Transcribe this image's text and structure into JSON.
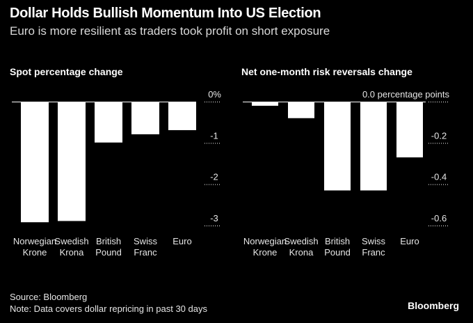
{
  "title": "Dollar Holds Bullish Momentum Into US Election",
  "subtitle": "Euro is more resilient as traders took profit on short exposure",
  "source": "Source: Bloomberg",
  "note": "Note: Data covers dollar repricing in past 30 days",
  "brand": "Bloomberg",
  "colors": {
    "background": "#000000",
    "bar": "#ffffff",
    "text": "#ffffff"
  },
  "chart_data": [
    {
      "type": "bar",
      "title": "Spot percentage change",
      "categories": [
        [
          "Norwegian",
          "Krone"
        ],
        [
          "Swedish",
          "Krona"
        ],
        [
          "British",
          "Pound"
        ],
        [
          "Swiss",
          "Franc"
        ],
        [
          "Euro"
        ]
      ],
      "values": [
        -2.92,
        -2.89,
        -0.99,
        -0.79,
        -0.69
      ],
      "ylim": [
        -3,
        0
      ],
      "yticks": [
        0,
        -1,
        -2,
        -3
      ],
      "ytick_labels": [
        "0%",
        "-1",
        "-2",
        "-3"
      ],
      "axis_position": "right",
      "grid": false
    },
    {
      "type": "bar",
      "title": "Net one-month risk reversals change",
      "categories": [
        [
          "Norwegian",
          "Krone"
        ],
        [
          "Swedish",
          "Krona"
        ],
        [
          "British",
          "Pound"
        ],
        [
          "Swiss",
          "Franc"
        ],
        [
          "Euro"
        ]
      ],
      "values": [
        -0.02,
        -0.08,
        -0.43,
        -0.43,
        -0.27
      ],
      "ylim": [
        -0.6,
        0
      ],
      "yticks": [
        0,
        -0.2,
        -0.4,
        -0.6
      ],
      "ytick_labels": [
        "0.0 percentage points",
        "-0.2",
        "-0.4",
        "-0.6"
      ],
      "axis_position": "right",
      "grid": false
    }
  ]
}
